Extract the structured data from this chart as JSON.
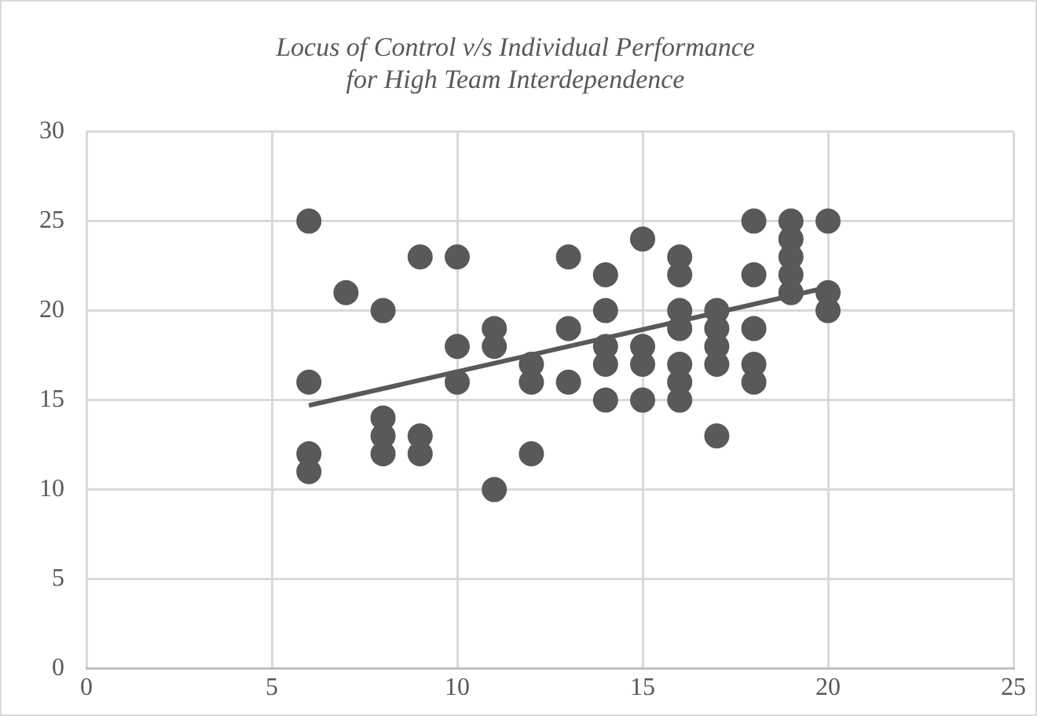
{
  "chart_data": {
    "type": "scatter",
    "title": "Locus of Control v/s Individual Performance\nfor High Team Interdependence",
    "series": [
      {
        "marker": "circle",
        "color": "#595959",
        "x": [
          6,
          6,
          6,
          6,
          7,
          8,
          8,
          8,
          8,
          9,
          9,
          9,
          10,
          10,
          10,
          11,
          11,
          11,
          12,
          12,
          12,
          13,
          13,
          13,
          14,
          14,
          14,
          14,
          14,
          15,
          15,
          15,
          15,
          16,
          16,
          16,
          16,
          16,
          16,
          16,
          17,
          17,
          17,
          17,
          17,
          18,
          18,
          18,
          18,
          18,
          19,
          19,
          19,
          19,
          19,
          20,
          20,
          20
        ],
        "values": [
          25,
          16,
          12,
          11,
          21,
          20,
          14,
          13,
          12,
          23,
          13,
          12,
          23,
          18,
          16,
          19,
          18,
          10,
          17,
          16,
          12,
          23,
          19,
          16,
          22,
          20,
          18,
          17,
          15,
          24,
          18,
          17,
          15,
          23,
          22,
          20,
          19,
          17,
          16,
          15,
          20,
          19,
          18,
          17,
          13,
          25,
          22,
          19,
          17,
          16,
          25,
          24,
          23,
          22,
          21,
          25,
          21,
          20
        ]
      },
      {
        "type": "line",
        "marker": "none",
        "color": "#595959",
        "x": [
          6,
          20
        ],
        "values": [
          14.7,
          21.3
        ]
      }
    ],
    "xlim": [
      0,
      25
    ],
    "xticks": [
      0,
      5,
      10,
      15,
      20,
      25
    ],
    "ylim": [
      0,
      30
    ],
    "yticks": [
      0,
      5,
      10,
      15,
      20,
      25,
      30
    ],
    "grid": true,
    "legend": false
  }
}
